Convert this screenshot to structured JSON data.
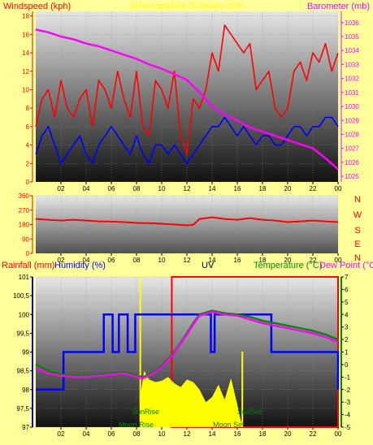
{
  "header": {
    "windspeed_label": "Windspeed (kph)",
    "date_title": "24 hour graph for 21 January 2020",
    "barometer_label": "Barometer (mb)"
  },
  "compass_labels": [
    "N",
    "W",
    "S",
    "E",
    "N"
  ],
  "bottom_header": {
    "rainfall_label": "Rainfall (mm)",
    "humidity_label": "Humidity (%)",
    "uv_label": "UV",
    "temperature_label": "Temperature (°C)",
    "dewpoint_label": "Dew Point (°C"
  },
  "annotations": {
    "sunrise": "SunRise",
    "sunset": "SunSet",
    "moonrise": "Moon Rise",
    "moonset": "Moon Set"
  },
  "colors": {
    "background": "#ffff99",
    "windspeed": "#ff0000",
    "gust": "#ff0000",
    "wind_avg": "#0000ff",
    "barometer": "#ff00ff",
    "humidity": "#0000ff",
    "temperature": "#008800",
    "dewpoint": "#ff00ff",
    "solar": "#ffff00",
    "uv_box": "#ff0000",
    "axis_green": "#008800"
  },
  "chart_data": [
    {
      "type": "line",
      "name": "wind-barometer",
      "x_ticks": [
        "02",
        "04",
        "06",
        "08",
        "10",
        "12",
        "14",
        "16",
        "18",
        "20",
        "22",
        "00"
      ],
      "y_left_ticks": [
        0,
        2,
        4,
        6,
        8,
        10,
        12,
        14,
        16,
        18
      ],
      "y_right_ticks": [
        1025,
        1026,
        1027,
        1028,
        1029,
        1030,
        1031,
        1032,
        1033,
        1034,
        1035,
        1036
      ],
      "ylim_left": [
        0,
        18.5
      ],
      "ylim_right": [
        1024.6,
        1036.8
      ],
      "series": [
        {
          "key": "gust",
          "axis": "left",
          "x": [
            0,
            0.5,
            1,
            1.5,
            2,
            2.5,
            3,
            3.5,
            4,
            4.5,
            5,
            5.5,
            6,
            6.5,
            7,
            7.5,
            8,
            8.5,
            9,
            9.5,
            10,
            10.5,
            11,
            11.5,
            12,
            12.5,
            13,
            13.5,
            14,
            14.5,
            15,
            15.5,
            16,
            16.5,
            17,
            17.5,
            18,
            18.5,
            19,
            19.5,
            20,
            20.5,
            21,
            21.5,
            22,
            22.5,
            23,
            23.5,
            24
          ],
          "values": [
            6,
            9,
            10,
            7,
            11,
            8,
            7,
            9,
            10,
            6,
            11,
            10,
            8,
            12,
            9,
            7,
            12,
            6,
            5,
            11,
            10,
            8,
            12,
            5,
            3,
            9,
            8,
            10,
            14,
            12,
            17,
            16,
            15,
            14,
            15,
            10,
            11,
            12,
            8,
            7,
            8,
            12,
            13,
            11,
            14,
            13,
            15,
            12,
            14
          ]
        },
        {
          "key": "wind_avg",
          "axis": "left",
          "x": [
            0,
            0.5,
            1,
            1.5,
            2,
            2.5,
            3,
            3.5,
            4,
            4.5,
            5,
            5.5,
            6,
            6.5,
            7,
            7.5,
            8,
            8.5,
            9,
            9.5,
            10,
            10.5,
            11,
            11.5,
            12,
            12.5,
            13,
            13.5,
            14,
            14.5,
            15,
            15.5,
            16,
            16.5,
            17,
            17.5,
            18,
            18.5,
            19,
            19.5,
            20,
            20.5,
            21,
            21.5,
            22,
            22.5,
            23,
            23.5,
            24
          ],
          "values": [
            3,
            5,
            6,
            4,
            2,
            3,
            4,
            5,
            3,
            2,
            4,
            5,
            6,
            5,
            4,
            3,
            5,
            3,
            2,
            4,
            4,
            3,
            4,
            3,
            2,
            3,
            4,
            5,
            6,
            6,
            7,
            6,
            5,
            6,
            5,
            4,
            5,
            5,
            4,
            4,
            5,
            6,
            6,
            5,
            6,
            6,
            7,
            7,
            6
          ]
        },
        {
          "key": "barometer",
          "axis": "right",
          "x": [
            0,
            1,
            2,
            3,
            4,
            5,
            6,
            7,
            8,
            9,
            10,
            11,
            12,
            13,
            14,
            15,
            16,
            17,
            18,
            19,
            20,
            21,
            22,
            23,
            24
          ],
          "values": [
            1035.5,
            1035.3,
            1035.0,
            1034.8,
            1034.5,
            1034.3,
            1034.0,
            1033.7,
            1033.4,
            1033.0,
            1032.7,
            1032.3,
            1031.9,
            1031.0,
            1030.0,
            1029.4,
            1029.0,
            1028.5,
            1028.2,
            1027.9,
            1027.6,
            1027.3,
            1027.0,
            1026.3,
            1025.5
          ]
        }
      ]
    },
    {
      "type": "line",
      "name": "wind-direction",
      "x_ticks": [
        "02",
        "04",
        "06",
        "08",
        "10",
        "12",
        "14",
        "16",
        "18",
        "20",
        "22",
        "00"
      ],
      "y_ticks": [
        0,
        90,
        180,
        270,
        360
      ],
      "ylim": [
        0,
        360
      ],
      "series": [
        {
          "key": "direction",
          "x": [
            0,
            1,
            2,
            3,
            4,
            5,
            6,
            7,
            8,
            9,
            10,
            11,
            12,
            12.5,
            13,
            14,
            15,
            16,
            17,
            18,
            19,
            20,
            21,
            22,
            23,
            24
          ],
          "values": [
            215,
            210,
            205,
            210,
            205,
            200,
            198,
            195,
            190,
            188,
            185,
            180,
            175,
            178,
            215,
            225,
            215,
            210,
            220,
            210,
            205,
            195,
            200,
            205,
            200,
            195
          ]
        }
      ]
    },
    {
      "type": "line",
      "name": "humidity-temperature",
      "x_ticks": [
        "02",
        "04",
        "06",
        "08",
        "10",
        "12",
        "14",
        "16",
        "18",
        "20",
        "22",
        "00"
      ],
      "y_left_ticks": [
        "97",
        "97,5",
        "98",
        "98,5",
        "99",
        "99,5",
        "100",
        "100,5",
        "101"
      ],
      "y_right_ticks": [
        -5,
        -4,
        -3,
        -2,
        -1,
        0,
        1,
        2,
        3,
        4,
        5,
        6,
        7
      ],
      "ylim_left": [
        97,
        101
      ],
      "ylim_right": [
        -5,
        7
      ],
      "series": [
        {
          "key": "humidity",
          "axis": "left",
          "step": true,
          "x": [
            0,
            2.2,
            5.4,
            6.1,
            6.6,
            7.3,
            7.9,
            8.5,
            13.9,
            14.2,
            18.7,
            24
          ],
          "values": [
            98,
            99,
            100,
            99,
            100,
            99,
            100,
            100,
            99,
            100,
            99,
            98
          ]
        },
        {
          "key": "temperature",
          "axis": "right",
          "x": [
            0,
            1,
            2,
            3,
            4,
            5,
            6,
            7,
            8,
            8.5,
            9,
            9.5,
            10,
            11,
            12,
            12.5,
            13,
            14,
            15,
            16,
            17,
            18,
            19,
            20,
            21,
            22,
            23,
            24
          ],
          "values": [
            0.0,
            -0.5,
            -0.8,
            -0.9,
            -0.9,
            -0.8,
            -0.7,
            -0.6,
            -0.9,
            -1.0,
            -0.8,
            -0.5,
            -0.1,
            1.0,
            2.5,
            3.3,
            4.0,
            4.3,
            4.1,
            4.0,
            3.8,
            3.5,
            3.3,
            3.1,
            2.9,
            2.7,
            2.4,
            2.0
          ]
        },
        {
          "key": "dewpoint",
          "axis": "right",
          "x": [
            0,
            1,
            2,
            3,
            4,
            5,
            6,
            7,
            8,
            8.5,
            9,
            9.5,
            10,
            11,
            12,
            12.5,
            13,
            14,
            15,
            16,
            17,
            18,
            19,
            20,
            21,
            22,
            23,
            24
          ],
          "values": [
            -0.3,
            -0.7,
            -0.9,
            -1.0,
            -1.0,
            -0.9,
            -0.8,
            -0.7,
            -1.0,
            -1.1,
            -0.9,
            -0.6,
            -0.2,
            0.9,
            2.4,
            3.2,
            3.9,
            4.2,
            4.0,
            3.9,
            3.6,
            3.3,
            3.1,
            2.9,
            2.7,
            2.5,
            2.2,
            1.8
          ]
        },
        {
          "key": "solar",
          "axis": "right",
          "x": [
            8.3,
            8.6,
            9,
            9.5,
            10,
            10.5,
            11,
            11.5,
            12,
            12.5,
            13,
            13.5,
            14,
            14.5,
            15,
            15.5,
            16,
            16.4
          ],
          "values": [
            -2.5,
            -0.5,
            -1.2,
            -1.4,
            -1.3,
            -1.0,
            -1.5,
            -1.8,
            -1.2,
            -1.4,
            -2.0,
            -3.0,
            -2.6,
            -1.6,
            -2.8,
            -1.1,
            -3.2,
            -5
          ]
        }
      ]
    }
  ]
}
